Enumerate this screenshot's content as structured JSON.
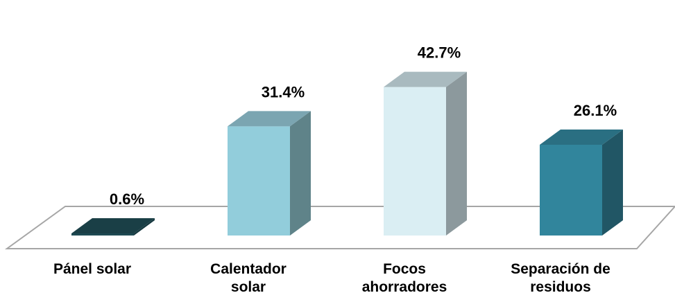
{
  "chart_data": {
    "type": "bar",
    "style": "3d-column",
    "categories": [
      [
        "Pánel solar"
      ],
      [
        "Calentador",
        "solar"
      ],
      [
        "Focos",
        "ahorradores"
      ],
      [
        "Separación de",
        "residuos"
      ]
    ],
    "values": [
      0.6,
      31.4,
      42.7,
      26.1
    ],
    "value_labels": [
      "0.6%",
      "31.4%",
      "42.7%",
      "26.1%"
    ],
    "unit": "%",
    "ylim": [
      0,
      45
    ],
    "title": "",
    "xlabel": "",
    "ylabel": "",
    "grid": false,
    "legend": "none",
    "colors": {
      "front": [
        "#1e4a52",
        "#92cddb",
        "#daeef3",
        "#31859c"
      ],
      "top": [
        "#1a3f46",
        "#7ba5b1",
        "#a9babf",
        "#2a6f82"
      ],
      "side": [
        "#173940",
        "#5f8389",
        "#8c999d",
        "#215665"
      ],
      "floor_stroke": "#a6a6a6"
    }
  }
}
